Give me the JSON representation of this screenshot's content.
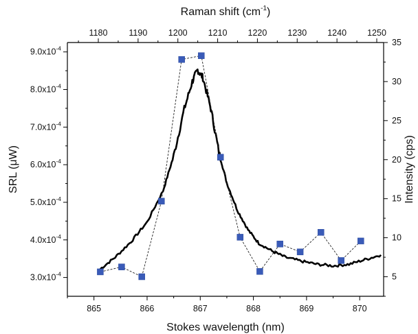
{
  "chart_data": {
    "type": "line",
    "xlabel": "Stokes wavelength (nm)",
    "x_top_label_main": "Raman shift (cm",
    "x_top_label_sup": "-1",
    "x_top_label_end": ")",
    "ylabel_left": "SRL (μW)",
    "ylabel_right": "Intensity (cps)",
    "xlim": [
      864.5,
      870.45
    ],
    "ylim_left": [
      0.00025,
      0.000925
    ],
    "ylim_right": [
      2.5,
      35
    ],
    "x_ticks": [
      "865",
      "866",
      "867",
      "868",
      "869",
      "870"
    ],
    "x_top_ticks": [
      "1180",
      "1190",
      "1200",
      "1210",
      "1220",
      "1230",
      "1240",
      "1250"
    ],
    "y_left_ticks": [
      {
        "mantissa": "3.0x10",
        "exp": "-4",
        "value": 0.0003
      },
      {
        "mantissa": "4.0x10",
        "exp": "-4",
        "value": 0.0004
      },
      {
        "mantissa": "5.0x10",
        "exp": "-4",
        "value": 0.0005
      },
      {
        "mantissa": "6.0x10",
        "exp": "-4",
        "value": 0.0006
      },
      {
        "mantissa": "7.0x10",
        "exp": "-4",
        "value": 0.0007
      },
      {
        "mantissa": "8.0x10",
        "exp": "-4",
        "value": 0.0008
      },
      {
        "mantissa": "9.0x10",
        "exp": "-4",
        "value": 0.0009
      }
    ],
    "y_right_ticks": [
      "5",
      "10",
      "15",
      "20",
      "25",
      "30",
      "35"
    ],
    "series": [
      {
        "axis": "left",
        "style": "dashed-line-with-square-markers",
        "color": "#3a5bb8",
        "points": [
          [
            865.12,
            0.000315
          ],
          [
            865.52,
            0.000328
          ],
          [
            865.9,
            0.000302
          ],
          [
            866.27,
            0.000503
          ],
          [
            866.65,
            0.00088
          ],
          [
            867.02,
            0.00089
          ],
          [
            867.38,
            0.00062
          ],
          [
            867.75,
            0.000407
          ],
          [
            868.12,
            0.000316
          ],
          [
            868.5,
            0.000389
          ],
          [
            868.88,
            0.000368
          ],
          [
            869.27,
            0.00042
          ],
          [
            869.65,
            0.000345
          ],
          [
            870.02,
            0.000397
          ]
        ]
      },
      {
        "axis": "right",
        "style": "thick-solid-line",
        "color": "#000000",
        "points": [
          [
            865.12,
            6.0
          ],
          [
            865.4,
            7.5
          ],
          [
            865.7,
            9.5
          ],
          [
            866.0,
            12.0
          ],
          [
            866.3,
            16.0
          ],
          [
            866.5,
            20.5
          ],
          [
            866.7,
            26.5
          ],
          [
            866.85,
            30.0
          ],
          [
            866.95,
            31.5
          ],
          [
            867.05,
            30.5
          ],
          [
            867.2,
            26.5
          ],
          [
            867.35,
            21.0
          ],
          [
            867.5,
            17.0
          ],
          [
            867.7,
            13.5
          ],
          [
            867.9,
            11.0
          ],
          [
            868.1,
            9.3
          ],
          [
            868.35,
            8.3
          ],
          [
            868.6,
            7.5
          ],
          [
            868.9,
            7.0
          ],
          [
            869.2,
            6.6
          ],
          [
            869.5,
            6.4
          ],
          [
            869.8,
            6.6
          ],
          [
            870.1,
            7.2
          ],
          [
            870.4,
            7.8
          ]
        ]
      }
    ],
    "grid": false
  }
}
